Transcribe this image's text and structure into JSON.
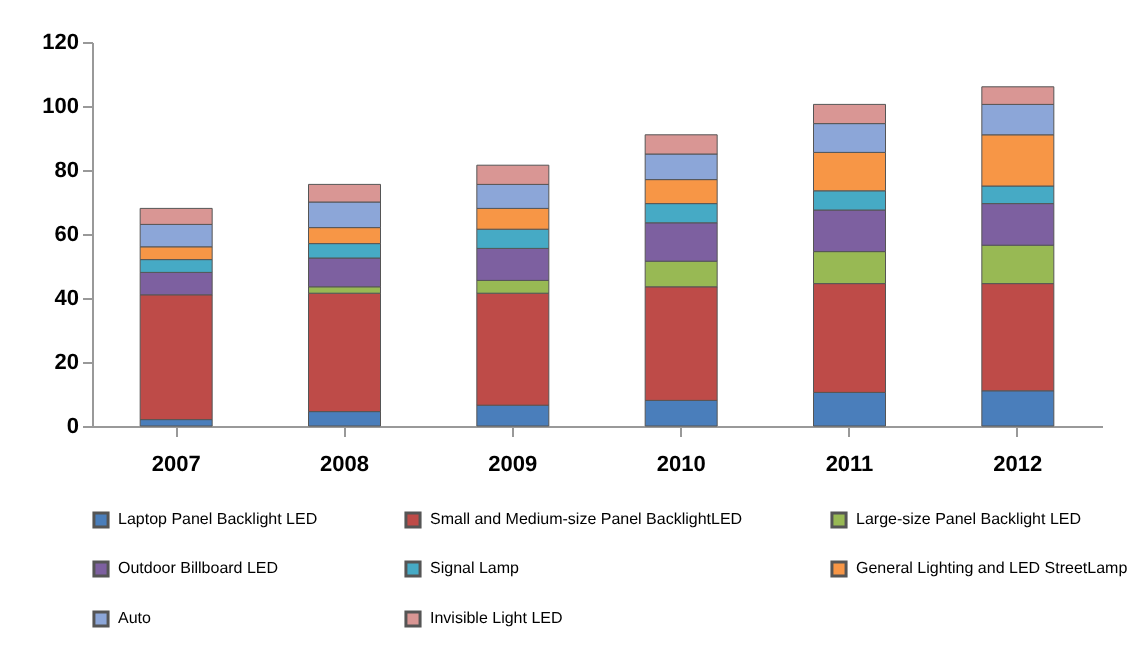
{
  "chart_data": {
    "type": "bar",
    "stacked": true,
    "categories": [
      "2007",
      "2008",
      "2009",
      "2010",
      "2011",
      "2012"
    ],
    "series": [
      {
        "name": "Laptop Panel Backlight LED",
        "color": "#4a7ebb",
        "values": [
          2,
          4.5,
          6.5,
          8,
          10.5,
          11
        ]
      },
      {
        "name": "Small and Medium-size Panel BacklightLED",
        "color": "#be4b48",
        "values": [
          39,
          37,
          35,
          35.5,
          34,
          33.5
        ]
      },
      {
        "name": "Large-size Panel Backlight LED",
        "color": "#98b954",
        "values": [
          null,
          2,
          4,
          8,
          10,
          12
        ]
      },
      {
        "name": "Outdoor Billboard LED",
        "color": "#7d60a0",
        "values": [
          7,
          9,
          10,
          12,
          13,
          13
        ]
      },
      {
        "name": "Signal Lamp",
        "color": "#46aac5",
        "values": [
          4,
          4.5,
          6,
          6,
          6,
          5.5
        ]
      },
      {
        "name": "General Lighting and LED StreetLamp",
        "color": "#f79646",
        "values": [
          4,
          5,
          6.5,
          7.5,
          12,
          16
        ]
      },
      {
        "name": "Auto",
        "color": "#8ca6d8",
        "values": [
          7,
          8,
          7.5,
          8,
          9,
          9.5
        ]
      },
      {
        "name": "Invisible Light LED",
        "color": "#d99694",
        "values": [
          5,
          5.5,
          6,
          6,
          6,
          5.5
        ]
      }
    ],
    "ylim": [
      0,
      120
    ],
    "yticks": [
      0,
      20,
      40,
      60,
      80,
      100,
      120
    ],
    "grid": false,
    "legend": "bottom"
  }
}
